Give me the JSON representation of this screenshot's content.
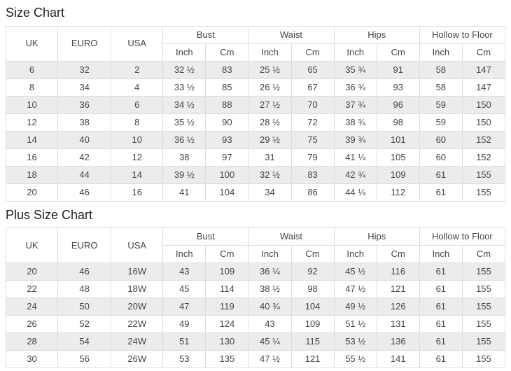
{
  "colors": {
    "bg": "#ffffff",
    "row_alt": "#ececec",
    "border": "#dddddd",
    "text": "#444444",
    "title": "#222222"
  },
  "size_chart": {
    "title": "Size Chart",
    "columns": {
      "uk": "UK",
      "euro": "EURO",
      "usa": "USA",
      "bust": "Bust",
      "waist": "Waist",
      "hips": "Hips",
      "hollow_to_floor": "Hollow to Floor",
      "inch": "Inch",
      "cm": "Cm"
    },
    "rows": [
      [
        "6",
        "32",
        "2",
        "32 ½",
        "83",
        "25 ½",
        "65",
        "35 ¾",
        "91",
        "58",
        "147"
      ],
      [
        "8",
        "34",
        "4",
        "33 ½",
        "85",
        "26 ½",
        "67",
        "36 ¾",
        "93",
        "58",
        "147"
      ],
      [
        "10",
        "36",
        "6",
        "34 ½",
        "88",
        "27 ½",
        "70",
        "37 ¾",
        "96",
        "59",
        "150"
      ],
      [
        "12",
        "38",
        "8",
        "35 ½",
        "90",
        "28 ½",
        "72",
        "38 ¾",
        "98",
        "59",
        "150"
      ],
      [
        "14",
        "40",
        "10",
        "36 ½",
        "93",
        "29 ½",
        "75",
        "39 ¾",
        "101",
        "60",
        "152"
      ],
      [
        "16",
        "42",
        "12",
        "38",
        "97",
        "31",
        "79",
        "41 ¼",
        "105",
        "60",
        "152"
      ],
      [
        "18",
        "44",
        "14",
        "39 ½",
        "100",
        "32 ½",
        "83",
        "42 ¾",
        "109",
        "61",
        "155"
      ],
      [
        "20",
        "46",
        "16",
        "41",
        "104",
        "34",
        "86",
        "44 ¼",
        "112",
        "61",
        "155"
      ]
    ]
  },
  "plus_size_chart": {
    "title": "Plus Size Chart",
    "columns": {
      "uk": "UK",
      "euro": "EURO",
      "usa": "USA",
      "bust": "Bust",
      "waist": "Waist",
      "hips": "Hips",
      "hollow_to_floor": "Hollow to Floor",
      "inch": "Inch",
      "cm": "Cm"
    },
    "rows": [
      [
        "20",
        "46",
        "16W",
        "43",
        "109",
        "36 ¼",
        "92",
        "45 ½",
        "116",
        "61",
        "155"
      ],
      [
        "22",
        "48",
        "18W",
        "45",
        "114",
        "38 ½",
        "98",
        "47 ½",
        "121",
        "61",
        "155"
      ],
      [
        "24",
        "50",
        "20W",
        "47",
        "119",
        "40 ¾",
        "104",
        "49 ½",
        "126",
        "61",
        "155"
      ],
      [
        "26",
        "52",
        "22W",
        "49",
        "124",
        "43",
        "109",
        "51 ½",
        "131",
        "61",
        "155"
      ],
      [
        "28",
        "54",
        "24W",
        "51",
        "130",
        "45 ¼",
        "115",
        "53 ½",
        "136",
        "61",
        "155"
      ],
      [
        "30",
        "56",
        "26W",
        "53",
        "135",
        "47 ½",
        "121",
        "55 ½",
        "141",
        "61",
        "155"
      ]
    ]
  }
}
